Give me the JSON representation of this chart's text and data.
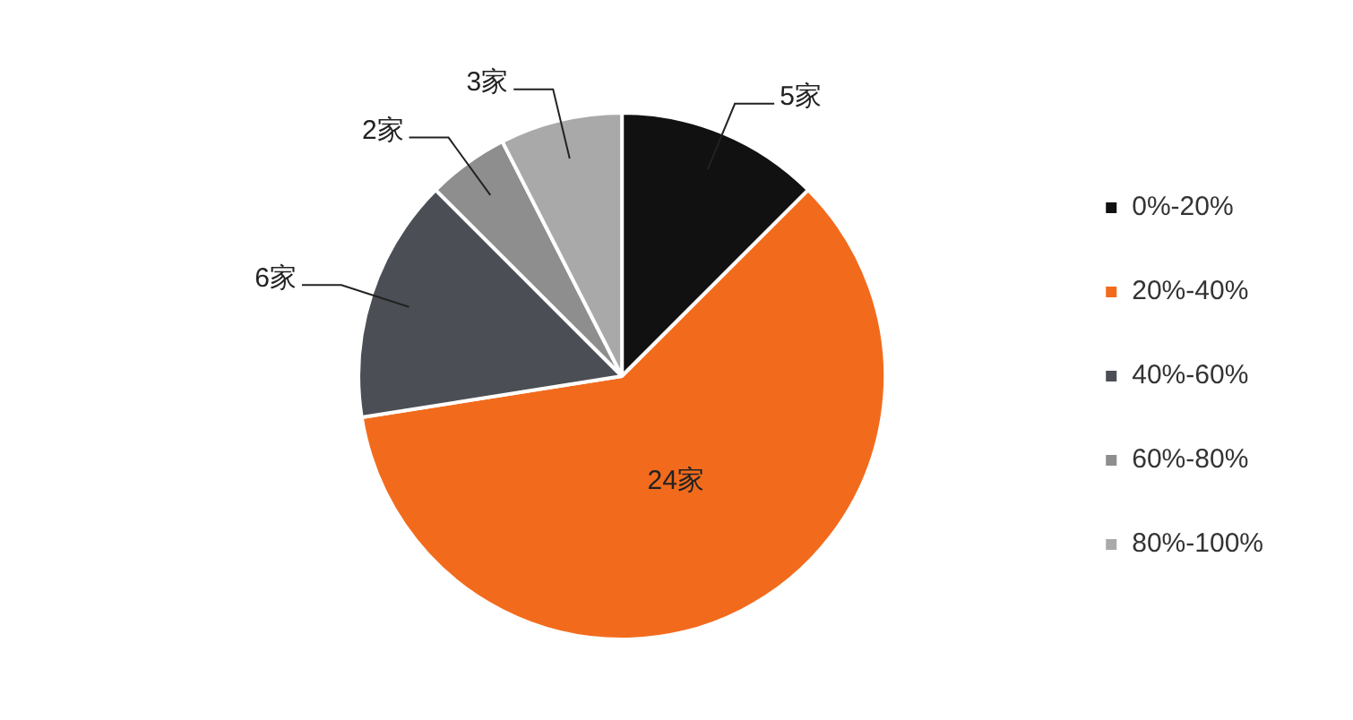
{
  "chart_data": {
    "type": "pie",
    "categories": [
      "0%-20%",
      "20%-40%",
      "40%-60%",
      "60%-80%",
      "80%-100%"
    ],
    "values": [
      5,
      24,
      6,
      2,
      3
    ],
    "value_labels": [
      "5家",
      "24家",
      "6家",
      "2家",
      "3家"
    ],
    "colors": [
      "#111111",
      "#f26b1d",
      "#4b4f55",
      "#8e8e8e",
      "#a9a9a9"
    ],
    "legend": "right"
  }
}
